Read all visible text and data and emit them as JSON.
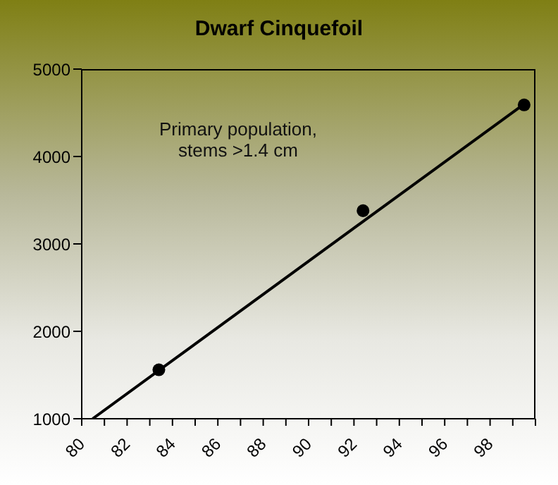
{
  "chart_data": {
    "type": "scatter",
    "title": "Dwarf Cinquefoil",
    "annotations": [
      "Primary population, stems >1.4 cm"
    ],
    "xlim": [
      80,
      100
    ],
    "xticks": [
      80,
      {
        "value": 81,
        "label": null
      },
      82,
      {
        "value": 83,
        "label": null
      },
      84,
      {
        "value": 85,
        "label": null
      },
      86,
      {
        "value": 87,
        "label": null
      },
      88,
      {
        "value": 89,
        "label": null
      },
      90,
      {
        "value": 91,
        "label": null
      },
      92,
      {
        "value": 93,
        "label": null
      },
      94,
      {
        "value": 95,
        "label": null
      },
      96,
      {
        "value": 97,
        "label": null
      },
      98,
      {
        "value": 99,
        "label": null
      },
      {
        "value": 100,
        "label": null
      }
    ],
    "ylim": [
      1000,
      5000
    ],
    "yticks": [
      1000,
      2000,
      3000,
      4000,
      5000
    ],
    "grid": false,
    "legend": false,
    "series": [
      {
        "color": "#000000",
        "marker": "circle",
        "x": [
          83.4,
          92.4,
          99.5
        ],
        "values": [
          1560,
          3380,
          4590
        ]
      },
      {
        "type": "line",
        "color": "#000000",
        "marker": "none",
        "x": [
          80.48,
          99.5
        ],
        "values": [
          1000,
          4600
        ]
      }
    ]
  }
}
